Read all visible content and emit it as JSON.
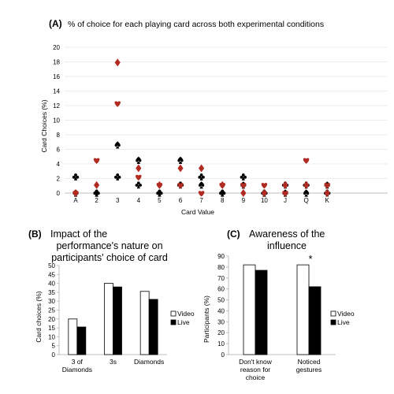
{
  "colors": {
    "red": "#b22b22",
    "black": "#000000",
    "axis": "#bfbfbf",
    "grid": "#d9d9d9"
  },
  "chart_data": [
    {
      "type": "scatter",
      "panel_label": "(A)",
      "title": "% of choice for each playing card across both experimental conditions",
      "xlabel": "Card Value",
      "ylabel": "Card Choices (%)",
      "categories": [
        "A",
        "2",
        "3",
        "4",
        "5",
        "6",
        "7",
        "8",
        "9",
        "10",
        "J",
        "Q",
        "K"
      ],
      "ylim": [
        0,
        20
      ],
      "yticks": [
        0,
        2,
        4,
        6,
        8,
        10,
        12,
        14,
        16,
        18,
        20
      ],
      "grid": true,
      "series": [
        {
          "suit": "clubs",
          "color": "#000000",
          "values": [
            2.2,
            0,
            2.2,
            1.1,
            0,
            1.1,
            2.2,
            0,
            2.2,
            0,
            1.1,
            1.1,
            0
          ]
        },
        {
          "suit": "spades",
          "color": "#000000",
          "values": [
            0,
            0,
            6.6,
            4.5,
            0,
            4.5,
            1.1,
            0,
            1.1,
            0,
            0,
            0,
            1.1
          ]
        },
        {
          "suit": "hearts",
          "color": "#b22b22",
          "values": [
            0,
            4.5,
            12.3,
            2.2,
            1.1,
            1.1,
            0,
            1.1,
            1.1,
            1.1,
            0,
            4.5,
            1.1
          ]
        },
        {
          "suit": "diamonds",
          "color": "#b22b22",
          "values": [
            0,
            1.1,
            17.9,
            3.4,
            1.1,
            3.4,
            3.4,
            1.1,
            0,
            0,
            1.1,
            1.1,
            0
          ]
        }
      ]
    },
    {
      "type": "bar",
      "panel_label": "(B)",
      "title_lines": [
        "Impact of the",
        "performance's nature on",
        "participants' choice of card"
      ],
      "ylabel": "Card choices (%)",
      "category_lines": [
        [
          "3 of",
          "Diamonds"
        ],
        [
          "3s"
        ],
        [
          "Diamonds"
        ]
      ],
      "ylim": [
        0,
        50
      ],
      "yticks": [
        0,
        5,
        10,
        15,
        20,
        25,
        30,
        35,
        40,
        45,
        50
      ],
      "series": [
        {
          "name": "Video",
          "fill": "#ffffff",
          "values": [
            20,
            40,
            35.5
          ]
        },
        {
          "name": "Live",
          "fill": "#000000",
          "values": [
            15.5,
            38,
            31
          ]
        }
      ]
    },
    {
      "type": "bar",
      "panel_label": "(C)",
      "title_lines": [
        "Awareness of the",
        "influence"
      ],
      "ylabel": "Participants (%)",
      "category_lines": [
        [
          "Don't know",
          "reason for",
          "choice"
        ],
        [
          "Noticed",
          "gestures"
        ]
      ],
      "ylim": [
        0,
        90
      ],
      "yticks": [
        0,
        10,
        20,
        30,
        40,
        50,
        60,
        70,
        80,
        90
      ],
      "annotation": "*",
      "series": [
        {
          "name": "Video",
          "fill": "#ffffff",
          "values": [
            82,
            82
          ]
        },
        {
          "name": "Live",
          "fill": "#000000",
          "values": [
            77,
            62
          ]
        }
      ]
    }
  ]
}
